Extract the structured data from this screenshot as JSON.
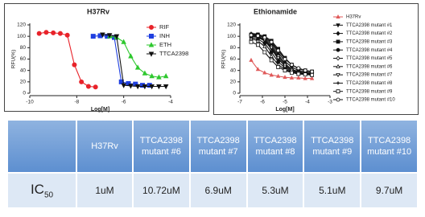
{
  "chart_data": [
    {
      "type": "line",
      "title": "H37Rv",
      "xlabel": "Log[M]",
      "ylabel": "RFU(%)",
      "xlim": [
        -10,
        -4
      ],
      "xticks": [
        -10,
        -8,
        -6,
        -4
      ],
      "ylim": [
        0,
        120
      ],
      "yticks": [
        0,
        20,
        40,
        60,
        80,
        100,
        120
      ],
      "legend": "upper right",
      "series": [
        {
          "name": "RIF",
          "color": "#e8232a",
          "marker": "circle",
          "x": [
            -9.6,
            -9.3,
            -9.0,
            -8.7,
            -8.4,
            -8.1,
            -7.8,
            -7.5,
            -7.2
          ],
          "values": [
            105,
            107,
            106,
            105,
            102,
            50,
            20,
            12,
            11
          ]
        },
        {
          "name": "INH",
          "color": "#1f3fe0",
          "marker": "square",
          "x": [
            -7.3,
            -7.0,
            -6.7,
            -6.4,
            -6.1,
            -5.8,
            -5.5,
            -5.2,
            -4.9
          ],
          "values": [
            100,
            101,
            100,
            98,
            20,
            17,
            16,
            14,
            14
          ]
        },
        {
          "name": "ETH",
          "color": "#2ec82e",
          "marker": "triangle",
          "x": [
            -6.6,
            -6.3,
            -6.0,
            -5.7,
            -5.4,
            -5.1,
            -4.8,
            -4.5,
            -4.2
          ],
          "values": [
            100,
            98,
            90,
            65,
            45,
            35,
            30,
            28,
            30
          ]
        },
        {
          "name": "TTCA2398",
          "color": "#111111",
          "marker": "triangle-down",
          "x": [
            -6.9,
            -6.6,
            -6.3,
            -6.0,
            -5.7,
            -5.4,
            -5.1,
            -4.8,
            -4.5,
            -4.2
          ],
          "values": [
            103,
            102,
            100,
            14,
            13,
            12,
            12,
            12,
            12,
            12
          ]
        }
      ]
    },
    {
      "type": "line",
      "title": "Ethionamide",
      "xlabel": "Log[M]",
      "ylabel": "RFU(%)",
      "xlim": [
        -7,
        -3
      ],
      "xticks": [
        -7,
        -6,
        -5,
        -4,
        -3
      ],
      "ylim": [
        0,
        120
      ],
      "yticks": [
        0,
        20,
        40,
        60,
        80,
        100,
        120
      ],
      "legend": "right",
      "x": [
        -6.5,
        -6.2,
        -5.9,
        -5.6,
        -5.3,
        -5.0,
        -4.7,
        -4.4,
        -4.1,
        -3.8
      ],
      "series": [
        {
          "name": "H37Rv",
          "color": "#e05a5a",
          "marker": "triangle",
          "values": [
            58,
            42,
            36,
            32,
            30,
            28,
            27,
            27,
            26,
            26
          ]
        },
        {
          "name": "TTCA2398 mutant #1",
          "color": "#111111",
          "marker": "triangle-down",
          "values": [
            100,
            98,
            92,
            78,
            60,
            48,
            40,
            36,
            35,
            34
          ]
        },
        {
          "name": "TTCA2398 mutant #2",
          "color": "#111111",
          "marker": "diamond",
          "values": [
            104,
            102,
            97,
            85,
            68,
            52,
            42,
            38,
            36,
            35
          ]
        },
        {
          "name": "TTCA2398 mutant #3",
          "color": "#111111",
          "marker": "square",
          "values": [
            103,
            103,
            100,
            92,
            78,
            62,
            50,
            43,
            40,
            38
          ]
        },
        {
          "name": "TTCA2398 mutant #4",
          "color": "#111111",
          "marker": "circle",
          "values": [
            98,
            95,
            88,
            72,
            55,
            45,
            38,
            35,
            33,
            32
          ]
        },
        {
          "name": "TTCA2398 mutant #5",
          "color": "#111111",
          "marker": "diamond-open",
          "values": [
            102,
            100,
            95,
            82,
            65,
            50,
            42,
            37,
            35,
            34
          ]
        },
        {
          "name": "TTCA2398 mutant #6",
          "color": "#111111",
          "marker": "triangle-open",
          "values": [
            96,
            92,
            82,
            65,
            50,
            42,
            37,
            34,
            33,
            32
          ]
        },
        {
          "name": "TTCA2398 mutant #7",
          "color": "#111111",
          "marker": "triangle-down-open",
          "values": [
            100,
            99,
            94,
            80,
            62,
            47,
            40,
            36,
            34,
            34
          ]
        },
        {
          "name": "TTCA2398 mutant #8",
          "color": "#111111",
          "marker": "cross",
          "values": [
            105,
            104,
            99,
            88,
            72,
            56,
            46,
            40,
            38,
            36
          ]
        },
        {
          "name": "TTCA2398 mutant #9",
          "color": "#111111",
          "marker": "square-open",
          "values": [
            90,
            85,
            72,
            58,
            46,
            40,
            36,
            34,
            33,
            32
          ]
        },
        {
          "name": "TTCA2398 mutant #10",
          "color": "#111111",
          "marker": "circle-open",
          "values": [
            102,
            101,
            98,
            90,
            75,
            60,
            50,
            44,
            40,
            38
          ]
        }
      ]
    }
  ],
  "table": {
    "header": [
      "H37Rv",
      "TTCA2398 mutant #6",
      "TTCA2398 mutant #7",
      "TTCA2398 mutant #8",
      "TTCA2398 mutant #9",
      "TTCA2398 mutant #10"
    ],
    "row_label": {
      "text": "IC",
      "subscript": "50"
    },
    "values": [
      "1uM",
      "10.72uM",
      "6.9uM",
      "5.3uM",
      "5.1uM",
      "9.7uM"
    ]
  }
}
